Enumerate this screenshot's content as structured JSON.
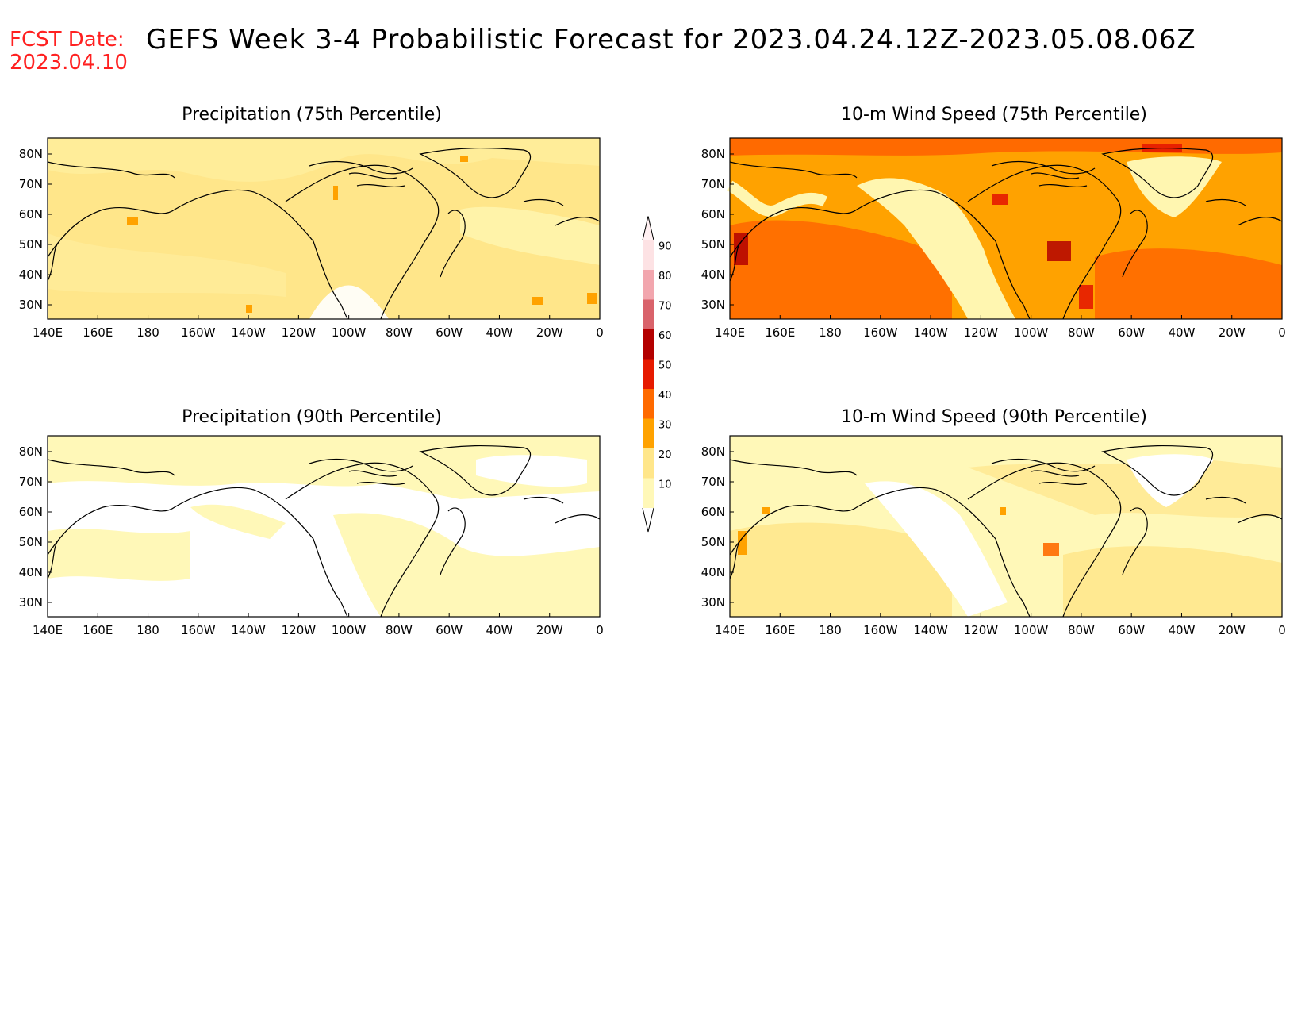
{
  "header": {
    "fcst_label": "FCST Date:",
    "fcst_date": "2023.04.10",
    "title": "GEFS Week 3-4 Probabilistic Forecast for 2023.04.24.12Z-2023.05.08.06Z"
  },
  "axes": {
    "lon_labels": [
      "140E",
      "160E",
      "180",
      "160W",
      "140W",
      "120W",
      "100W",
      "80W",
      "60W",
      "40W",
      "20W",
      "0"
    ],
    "lat_labels": [
      "80N",
      "70N",
      "60N",
      "50N",
      "40N",
      " 30N"
    ]
  },
  "panels": [
    {
      "title": "Precipitation (75th Percentile)",
      "dominant_class": "20-30"
    },
    {
      "title": "10-m Wind Speed (75th Percentile)",
      "dominant_class": "30-40"
    },
    {
      "title": "Precipitation (90th Percentile)",
      "dominant_class": "10-20"
    },
    {
      "title": "10-m Wind Speed (90th Percentile)",
      "dominant_class": "10-20"
    }
  ],
  "colorbar": {
    "levels": [
      "10",
      "20",
      "30",
      "40",
      "50",
      "60",
      "70",
      "80",
      "90"
    ],
    "colors": [
      "#fff8b8",
      "#ffe68a",
      "#ffa200",
      "#ff6a00",
      "#e61a00",
      "#b30000",
      "#d9636b",
      "#f2a6ae",
      "#fde2e4"
    ]
  }
}
